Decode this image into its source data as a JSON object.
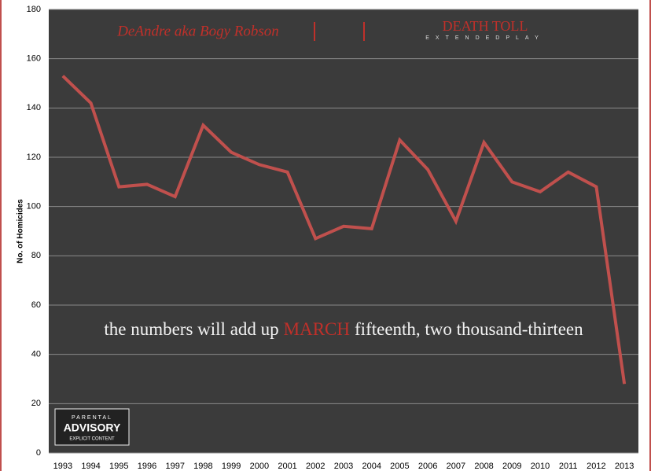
{
  "chart_data": {
    "type": "line",
    "artist": "DeAndre aka Bogy Robson",
    "title": "DEATH TOLL",
    "subtitle": "EXTENDEDPLAY",
    "annotation": {
      "before": "the numbers will add up",
      "highlight": "MARCH",
      "after": "fifteenth, two thousand-thirteen"
    },
    "badge": [
      "PARENTAL",
      "ADVISORY",
      "EXPLICIT CONTENT"
    ],
    "y_label": "No. of Homicides",
    "categories": [
      "1993",
      "1994",
      "1995",
      "1996",
      "1997",
      "1998",
      "1999",
      "2000",
      "2001",
      "2002",
      "2003",
      "2004",
      "2005",
      "2006",
      "2007",
      "2008",
      "2009",
      "2010",
      "2011",
      "2012",
      "2013"
    ],
    "values": [
      153,
      142,
      108,
      109,
      104,
      133,
      122,
      117,
      114,
      87,
      92,
      91,
      127,
      115,
      94,
      126,
      110,
      106,
      114,
      108,
      28
    ],
    "color": "#c0504d",
    "ylim": [
      0,
      180
    ],
    "yticks": [
      0,
      20,
      40,
      60,
      80,
      100,
      120,
      140,
      160,
      180
    ],
    "grid": true
  }
}
